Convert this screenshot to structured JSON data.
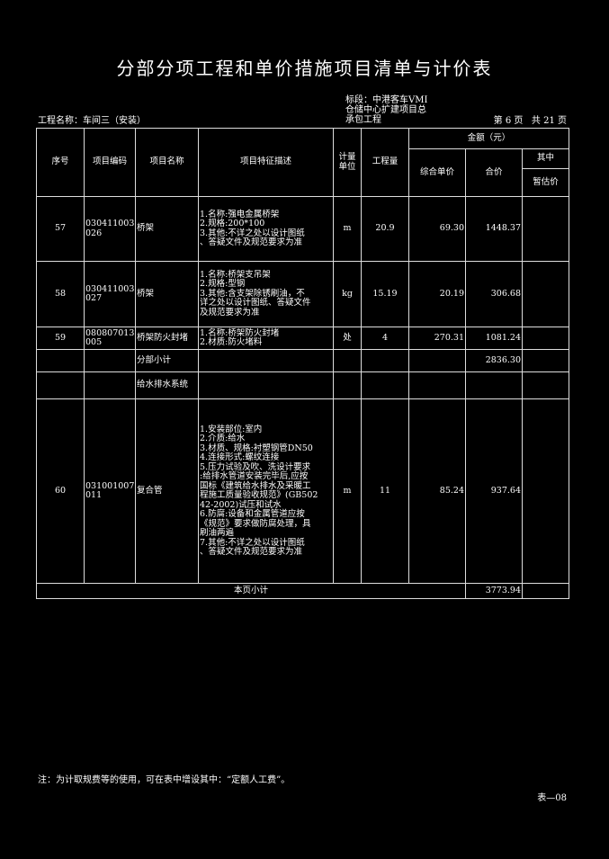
{
  "title": "分部分项工程和单价措施项目清单与计价表",
  "header": {
    "section_lines": [
      "标段：中港客车VMI",
      "仓储中心扩建项目总",
      "承包工程"
    ],
    "project_name": "工程名称：车间三（安装）",
    "page_info": "第 6 页   共 21 页"
  },
  "columns": {
    "seq": "序号",
    "code": "项目编码",
    "name": "项目名称",
    "desc": "项目特征描述",
    "unit": "计量单位",
    "qty": "工程量",
    "amount": "金额（元）",
    "unit_price": "综合单价",
    "total": "合价",
    "of_which": "其中",
    "provisional": "暂估价"
  },
  "rows": [
    {
      "seq": "57",
      "code": "030411003\n026",
      "name": "桥架",
      "desc": "1.名称:强电金属桥架\n2.规格:200*100\n3.其他:不详之处以设计图纸\n、答疑文件及规范要求为准",
      "unit": "m",
      "qty": "20.9",
      "unit_price": "69.30",
      "total": "1448.37"
    },
    {
      "seq": "58",
      "code": "030411003\n027",
      "name": "桥架",
      "desc": "1.名称:桥架支吊架\n2.规格:型钢\n3.其他:含支架除锈刷油，不\n详之处以设计图纸、答疑文件\n及规范要求为准",
      "unit": "kg",
      "qty": "15.19",
      "unit_price": "20.19",
      "total": "306.68"
    },
    {
      "seq": "59",
      "code": "080807013\n005",
      "name": "桥架防火封堵",
      "desc": "1.名称:桥架防火封堵\n2.材质:防火堵料",
      "unit": "处",
      "qty": "4",
      "unit_price": "270.31",
      "total": "1081.24"
    }
  ],
  "subtotal": {
    "label": "分部小计",
    "total": "2836.30"
  },
  "section": {
    "label": "给水排水系统"
  },
  "row60": {
    "seq": "60",
    "code": "031001007\n011",
    "name": "复合管",
    "desc": "1.安装部位:室内\n2.介质:给水\n3.材质、规格:衬塑钢管DN50\n4.连接形式:螺纹连接\n5.压力试验及吹、洗设计要求\n:给排水管道安装完毕后,应按\n国标《建筑给水排水及采暖工\n程施工质量验收规范》(GB502\n42-2002)试压和试水\n6.防腐:设备和金属管道应按\n《规范》要求做防腐处理，具\n刷油两遍\n7.其他:不详之处以设计图纸\n、答疑文件及规范要求为准",
    "unit": "m",
    "qty": "11",
    "unit_price": "85.24",
    "total": "937.64"
  },
  "page_subtotal": {
    "label": "本页小计",
    "total": "3773.94"
  },
  "footer": {
    "note": "注：为计取规费等的使用，可在表中增设其中：“定额人工费”。",
    "form_no": "表—08"
  }
}
